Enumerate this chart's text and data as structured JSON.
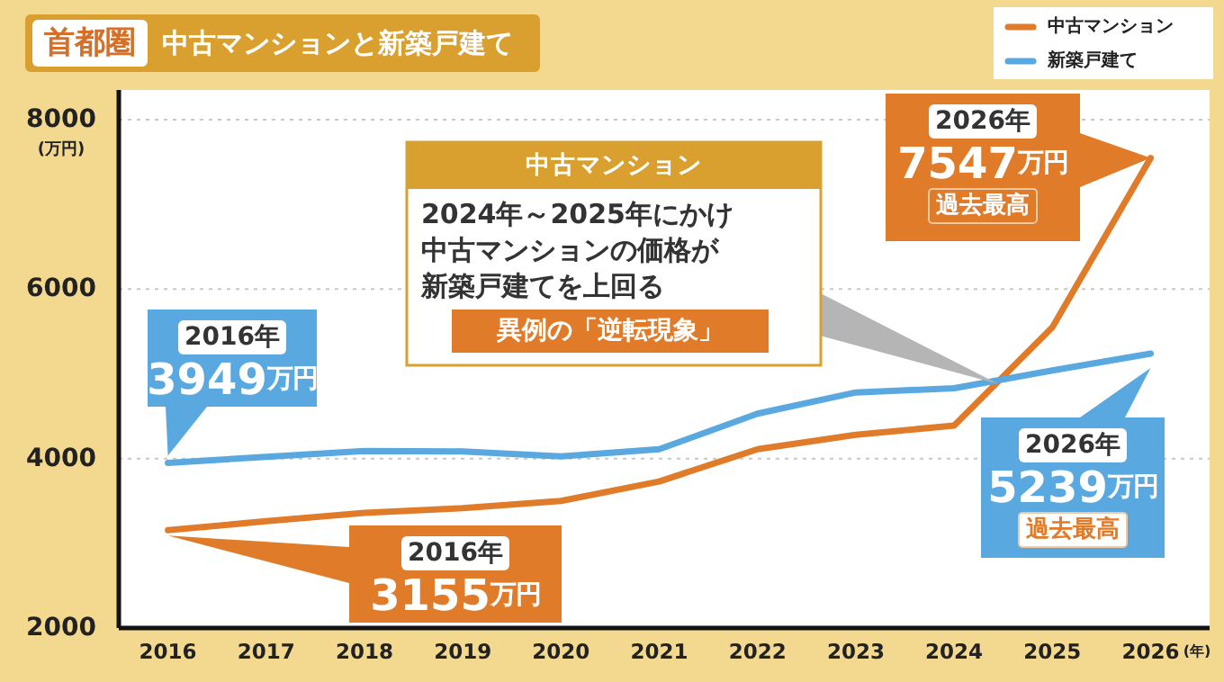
{
  "chart_data": {
    "type": "line",
    "title": "首都圏",
    "subtitle": "中古マンションと新築戸建て",
    "xlabel": "(年)",
    "ylabel": "(万円)",
    "x": [
      2016,
      2017,
      2018,
      2019,
      2020,
      2021,
      2022,
      2023,
      2024,
      2025,
      2026
    ],
    "series": [
      {
        "name": "中古マンション",
        "color": "#e07b2a",
        "values": [
          3155,
          3260,
          3360,
          3415,
          3500,
          3730,
          4110,
          4280,
          4390,
          5550,
          7547
        ]
      },
      {
        "name": "新築戸建て",
        "color": "#5aa8e0",
        "values": [
          3949,
          4020,
          4090,
          4085,
          4025,
          4110,
          4530,
          4780,
          4830,
          5040,
          5239
        ]
      }
    ],
    "xlim": [
      2015.5,
      2026.6
    ],
    "ylim": [
      2000,
      8350
    ],
    "xticks": [
      2016,
      2017,
      2018,
      2019,
      2020,
      2021,
      2022,
      2023,
      2024,
      2025,
      2026
    ],
    "yticks": [
      2000,
      4000,
      6000,
      8000
    ],
    "grid": "y",
    "legend": "top right",
    "marker": "none",
    "line_style": "solid",
    "annotations": [
      "2016年",
      "3949万円",
      "2016年",
      "3155万円",
      "中古マンション",
      "2024年～2025年にかけ",
      "中古マンションの価格が",
      "新築戸建てを上回る",
      "異例の「逆転現象」",
      "2026年",
      "7547万円",
      "過去最高",
      "2026年",
      "5239万円",
      "過去最高"
    ]
  }
}
